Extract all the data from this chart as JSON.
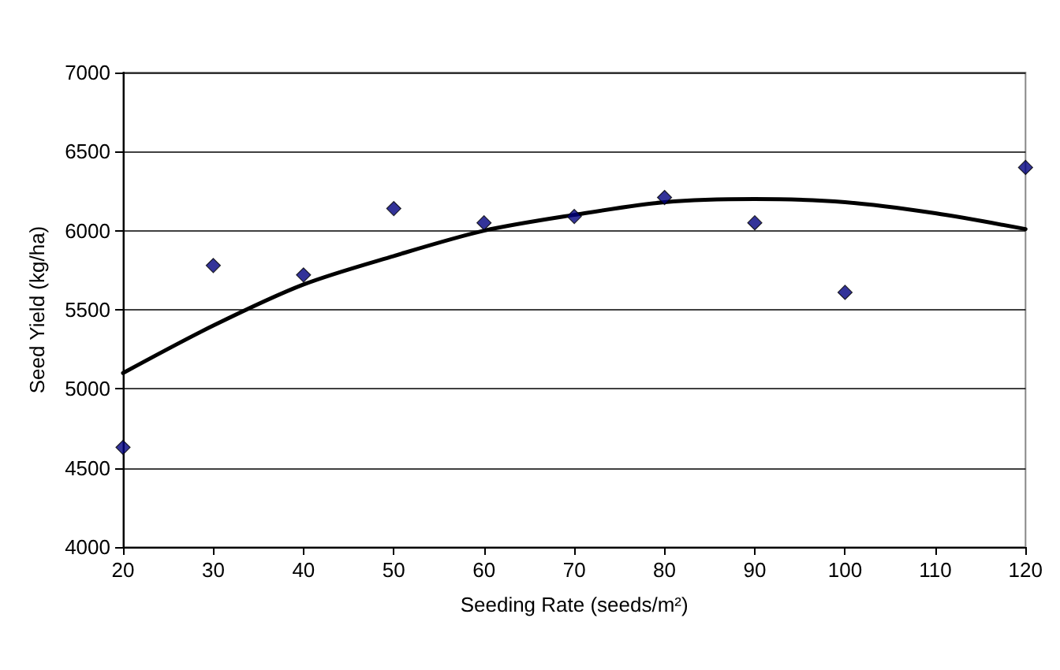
{
  "chart_data": {
    "type": "scatter",
    "xlabel": "Seeding Rate (seeds/m²)",
    "ylabel": "Seed Yield (kg/ha)",
    "xlim": [
      20,
      120
    ],
    "xticks": [
      20,
      30,
      40,
      50,
      60,
      70,
      80,
      90,
      100,
      110,
      120
    ],
    "ylim": [
      4000,
      7000
    ],
    "yticks": [
      4000,
      4500,
      5000,
      5500,
      6000,
      6500,
      7000
    ],
    "grid": "y",
    "series": [
      {
        "marker": "diamond",
        "color": "#000080",
        "x": [
          20,
          30,
          40,
          50,
          60,
          70,
          80,
          90,
          100,
          120
        ],
        "values": [
          4630,
          5780,
          5720,
          6140,
          6050,
          6090,
          6210,
          6050,
          5610,
          6400
        ]
      },
      {
        "type": "line",
        "marker": "none",
        "line_style": "solid",
        "color": "#000000",
        "x": [
          20,
          30,
          40,
          50,
          60,
          70,
          80,
          90,
          100,
          110,
          120
        ],
        "values": [
          5100,
          5400,
          5660,
          5840,
          6000,
          6100,
          6180,
          6200,
          6180,
          6110,
          6010
        ]
      }
    ]
  }
}
